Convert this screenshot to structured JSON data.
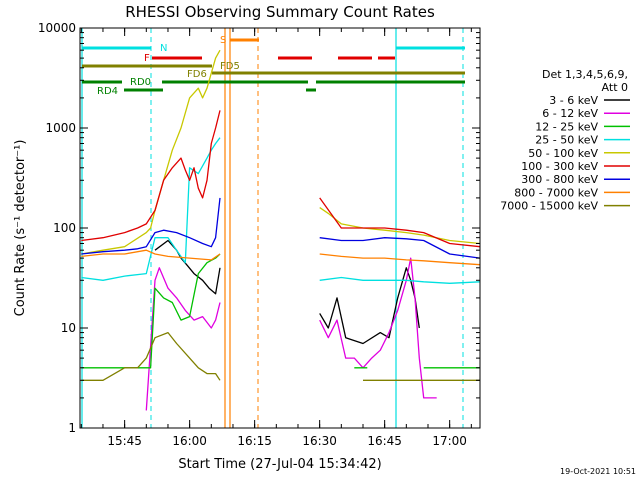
{
  "chart_data": {
    "type": "line",
    "title": "RHESSI Observing Summary Count Rates",
    "xlabel": "Start Time (27-Jul-04 15:34:42)",
    "ylabel": "Count Rate (s⁻¹ detector⁻¹)",
    "yscale": "log",
    "xlim_minutes_after_1530": [
      4.7,
      97
    ],
    "ylim": [
      1,
      10000
    ],
    "x_ticks": [
      "15:45",
      "16:00",
      "16:15",
      "16:30",
      "16:45",
      "17:00"
    ],
    "x_tick_minutes_after_1530": [
      15,
      30,
      45,
      60,
      75,
      90
    ],
    "y_ticks": [
      "1",
      "10",
      "100",
      "1000",
      "10000"
    ],
    "y_tick_values": [
      1,
      10,
      100,
      1000,
      10000
    ],
    "legend": {
      "title_lines": [
        "Det 1,3,4,5,6,9,",
        "Att 0"
      ],
      "placement": "right"
    },
    "series": [
      {
        "name": "3 - 6 keV",
        "color": "#000000",
        "x": [
          5,
          15,
          17.5,
          20,
          22,
          25,
          27,
          28,
          29.5,
          31,
          33,
          34.5,
          36,
          37,
          57,
          60,
          62,
          64,
          66,
          70,
          74,
          76,
          78,
          80,
          81,
          82,
          83,
          83.5
        ],
        "y": [
          null,
          null,
          null,
          null,
          60,
          75,
          60,
          50,
          42,
          35,
          30,
          25,
          22,
          40,
          null,
          14,
          10,
          20,
          8,
          7,
          9,
          8,
          20,
          40,
          30,
          20,
          10,
          null
        ]
      },
      {
        "name": "6 - 12 keV",
        "color": "#e000e0",
        "x": [
          5,
          20,
          22,
          23,
          25,
          27,
          29,
          31,
          33,
          35,
          36,
          37,
          57,
          60,
          62,
          64,
          66,
          68,
          70,
          72,
          74,
          76,
          78,
          80,
          81,
          82,
          83,
          84,
          87
        ],
        "y": [
          null,
          1.5,
          30,
          40,
          25,
          20,
          15,
          12,
          13,
          10,
          12,
          18,
          null,
          12,
          8,
          12,
          5,
          5,
          4,
          5,
          6,
          9,
          15,
          30,
          50,
          20,
          5,
          2,
          2
        ]
      },
      {
        "name": "12 - 25 keV",
        "color": "#00c000",
        "x": [
          5,
          10,
          15,
          20,
          21,
          22,
          24,
          26,
          28,
          30,
          32,
          34,
          36,
          37,
          57,
          60,
          64,
          68,
          71,
          72,
          80,
          83,
          84,
          90,
          97
        ],
        "y": [
          4,
          4,
          4,
          4,
          4,
          25,
          20,
          18,
          12,
          13,
          35,
          45,
          50,
          55,
          null,
          null,
          null,
          4,
          4,
          null,
          null,
          null,
          4,
          4,
          4
        ]
      },
      {
        "name": "25 - 50 keV",
        "color": "#00e0e0",
        "x": [
          5,
          10,
          15,
          20,
          22,
          25,
          27,
          29,
          30,
          32,
          34,
          35,
          36,
          37,
          57,
          60,
          65,
          70,
          75,
          80,
          84,
          90,
          97
        ],
        "y": [
          32,
          30,
          33,
          35,
          80,
          80,
          60,
          45,
          400,
          350,
          500,
          600,
          700,
          800,
          null,
          30,
          32,
          30,
          30,
          30,
          29,
          28,
          29
        ]
      },
      {
        "name": "50 - 100 keV",
        "color": "#c8c800",
        "x": [
          5,
          10,
          15,
          20,
          21,
          22,
          24,
          26,
          28,
          30,
          32,
          33,
          34,
          36,
          37,
          57,
          60,
          62,
          65,
          70,
          75,
          80,
          84,
          90,
          97
        ],
        "y": [
          55,
          60,
          65,
          90,
          100,
          150,
          300,
          600,
          1000,
          2000,
          2500,
          2000,
          2500,
          5000,
          6000,
          null,
          160,
          140,
          110,
          100,
          95,
          90,
          85,
          75,
          70
        ]
      },
      {
        "name": "100 - 300 keV",
        "color": "#e00000",
        "x": [
          5,
          10,
          15,
          18,
          20,
          22,
          24,
          26,
          28,
          29,
          30,
          31,
          32,
          33,
          34,
          35,
          36,
          37,
          57,
          60,
          65,
          70,
          75,
          80,
          84,
          90,
          97
        ],
        "y": [
          75,
          80,
          90,
          100,
          110,
          150,
          300,
          400,
          500,
          380,
          300,
          400,
          250,
          200,
          300,
          700,
          1000,
          1500,
          null,
          200,
          100,
          100,
          100,
          95,
          90,
          70,
          65
        ]
      },
      {
        "name": "300 - 800 keV",
        "color": "#0000e0",
        "x": [
          5,
          10,
          15,
          18,
          20,
          22,
          24,
          27,
          30,
          33,
          35,
          36,
          37,
          57,
          60,
          65,
          70,
          75,
          80,
          84,
          90,
          97
        ],
        "y": [
          55,
          58,
          60,
          62,
          65,
          90,
          95,
          90,
          80,
          70,
          65,
          80,
          200,
          null,
          80,
          75,
          75,
          80,
          78,
          75,
          55,
          50
        ]
      },
      {
        "name": "800 - 7000 keV",
        "color": "#ff8000",
        "x": [
          5,
          10,
          15,
          20,
          22,
          25,
          30,
          35,
          37,
          57,
          60,
          65,
          70,
          75,
          80,
          84,
          90,
          97
        ],
        "y": [
          52,
          55,
          55,
          60,
          55,
          52,
          50,
          48,
          55,
          null,
          55,
          52,
          50,
          50,
          48,
          47,
          45,
          43
        ]
      },
      {
        "name": "7000 - 15000 keV",
        "color": "#808000",
        "x": [
          5,
          10,
          15,
          18,
          20,
          22,
          25,
          27,
          30,
          32,
          34,
          36,
          37,
          57,
          60,
          65,
          70,
          75,
          80,
          84,
          90,
          97
        ],
        "y": [
          3,
          3,
          4,
          4,
          5,
          8,
          9,
          7,
          5,
          4,
          3.5,
          3.5,
          3,
          null,
          null,
          null,
          3,
          3,
          3,
          3,
          3,
          3
        ]
      }
    ],
    "flag_bars": [
      {
        "label": "N",
        "color": "#00e0e0"
      },
      {
        "label": "F",
        "color": "#e00000"
      },
      {
        "label": "S",
        "color": "#ff8000"
      },
      {
        "label": "FD5",
        "color": "#808000"
      },
      {
        "label": "FD6",
        "color": "#808000"
      },
      {
        "label": "RD0",
        "color": "#008000"
      },
      {
        "label": "RD4",
        "color": "#008000"
      }
    ]
  },
  "footer": {
    "timestamp": "19-Oct-2021 10:51"
  }
}
